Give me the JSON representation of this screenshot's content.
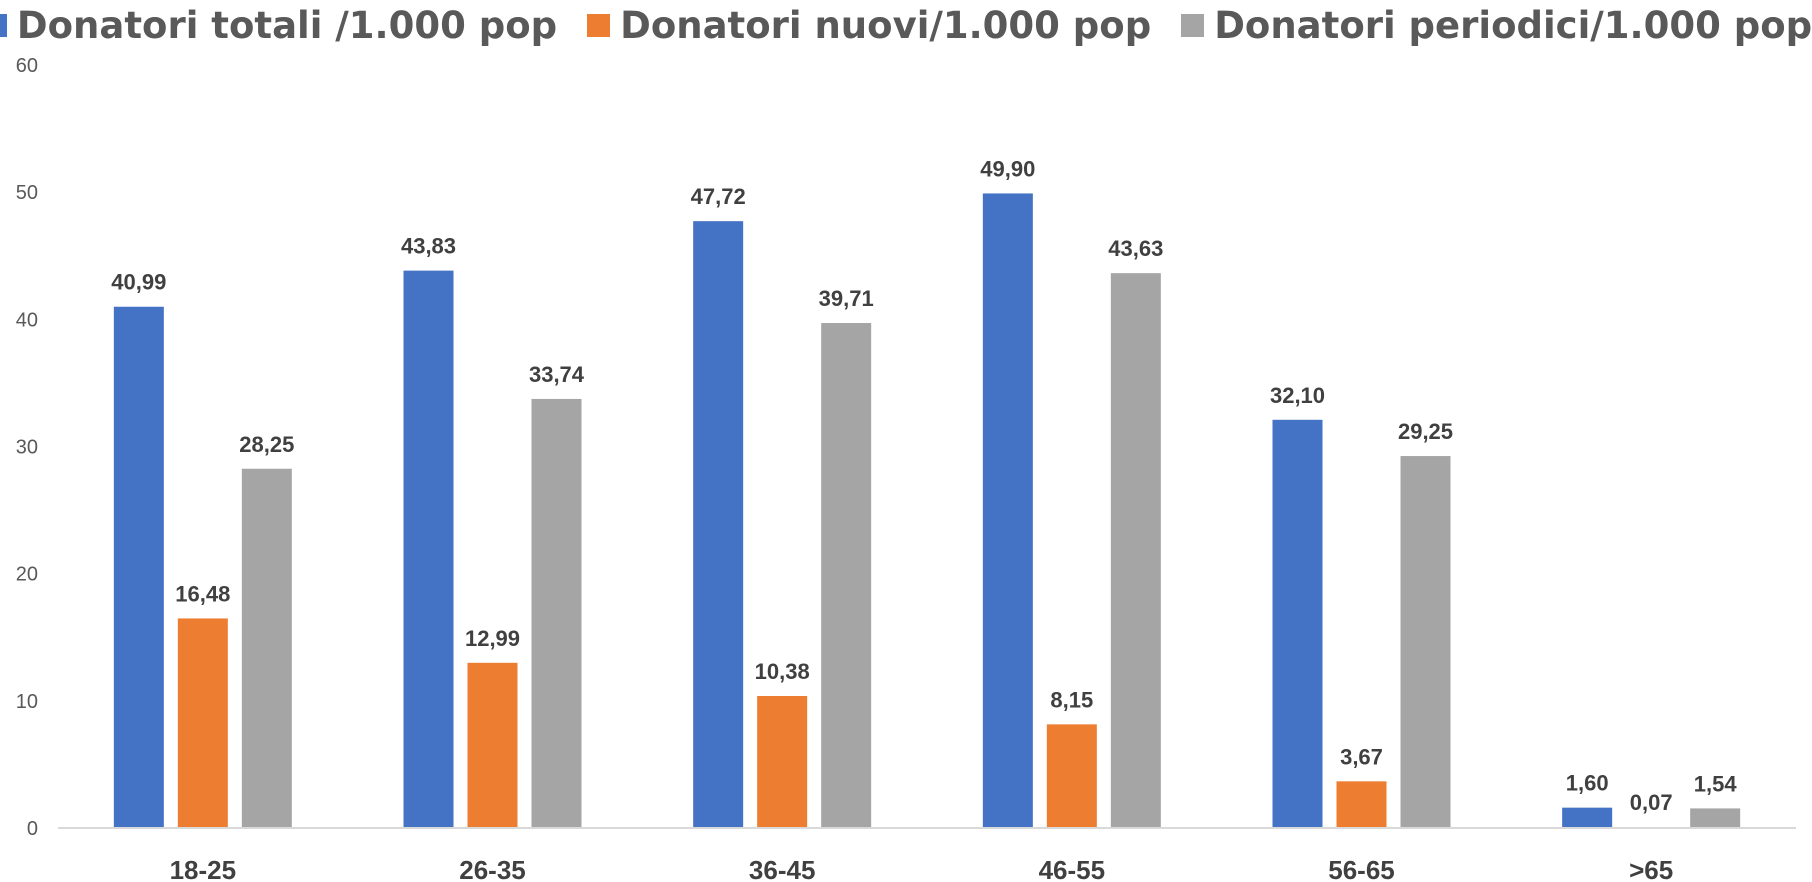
{
  "chart_data": {
    "type": "bar",
    "categories": [
      "18-25",
      "26-35",
      "36-45",
      "46-55",
      "56-65",
      ">65"
    ],
    "series": [
      {
        "name": "Donatori totali /1.000 pop",
        "color": "#4472C4",
        "values": [
          40.99,
          43.83,
          47.72,
          49.9,
          32.1,
          1.6
        ],
        "labels": [
          "40,99",
          "43,83",
          "47,72",
          "49,90",
          "32,10",
          "1,60"
        ]
      },
      {
        "name": "Donatori nuovi/1.000 pop",
        "color": "#ED7D31",
        "values": [
          16.48,
          12.99,
          10.38,
          8.15,
          3.67,
          0.07
        ],
        "labels": [
          "16,48",
          "12,99",
          "10,38",
          "8,15",
          "3,67",
          "0,07"
        ]
      },
      {
        "name": "Donatori periodici/1.000 pop",
        "color": "#A5A5A5",
        "values": [
          28.25,
          33.74,
          39.71,
          43.63,
          29.25,
          1.54
        ],
        "labels": [
          "28,25",
          "33,74",
          "39,71",
          "43,63",
          "29,25",
          "1,54"
        ]
      }
    ],
    "yticks": [
      0,
      10,
      20,
      30,
      40,
      50,
      60
    ],
    "ylim": [
      0,
      60
    ],
    "legend_position": "top",
    "grid": false
  }
}
